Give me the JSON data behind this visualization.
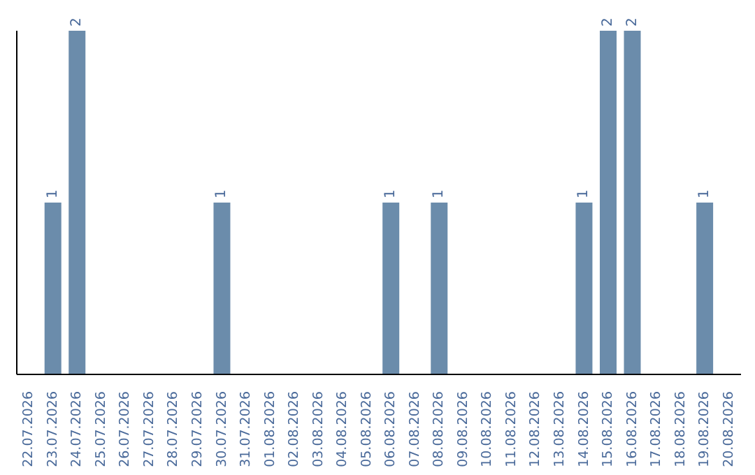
{
  "chart_data": {
    "type": "bar",
    "categories": [
      "22.07.2026",
      "23.07.2026",
      "24.07.2026",
      "25.07.2026",
      "26.07.2026",
      "27.07.2026",
      "28.07.2026",
      "29.07.2026",
      "30.07.2026",
      "31.07.2026",
      "01.08.2026",
      "02.08.2026",
      "03.08.2026",
      "04.08.2026",
      "05.08.2026",
      "06.08.2026",
      "07.08.2026",
      "08.08.2026",
      "09.08.2026",
      "10.08.2026",
      "11.08.2026",
      "12.08.2026",
      "13.08.2026",
      "14.08.2026",
      "15.08.2026",
      "16.08.2026",
      "17.08.2026",
      "18.08.2026",
      "19.08.2026",
      "20.08.2026"
    ],
    "values": [
      null,
      1,
      2,
      null,
      null,
      null,
      null,
      null,
      1,
      null,
      null,
      null,
      null,
      null,
      null,
      1,
      null,
      1,
      null,
      null,
      null,
      null,
      null,
      1,
      2,
      2,
      null,
      null,
      1,
      null
    ],
    "color": "#6b8cab",
    "data_labels": true
  }
}
